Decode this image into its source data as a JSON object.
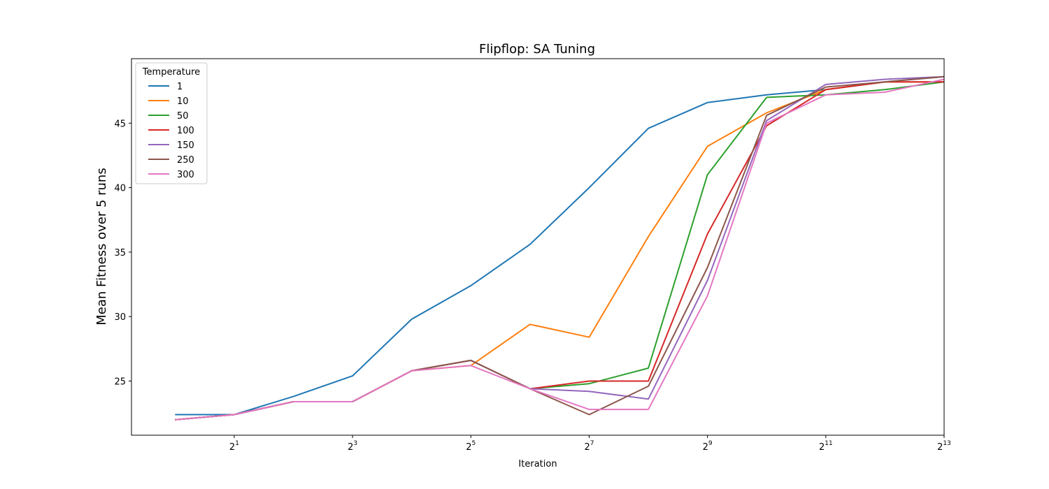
{
  "chart_data": {
    "type": "line",
    "title": "Flipflop: SA Tuning",
    "xlabel": "Iteration",
    "ylabel": "Mean Fitness over 5 runs",
    "xscale": "log2",
    "xlim": [
      0.6,
      8192
    ],
    "ylim": [
      20.8,
      50.0
    ],
    "grid": false,
    "legend": {
      "title": "Temperature",
      "position": "top-left"
    },
    "x": [
      1,
      2,
      4,
      8,
      16,
      32,
      64,
      128,
      256,
      512,
      1024,
      2048,
      4096,
      8192
    ],
    "x_ticks": [
      {
        "value": 2,
        "base": "2",
        "exp": "1"
      },
      {
        "value": 8,
        "base": "2",
        "exp": "3"
      },
      {
        "value": 32,
        "base": "2",
        "exp": "5"
      },
      {
        "value": 128,
        "base": "2",
        "exp": "7"
      },
      {
        "value": 512,
        "base": "2",
        "exp": "9"
      },
      {
        "value": 2048,
        "base": "2",
        "exp": "11"
      },
      {
        "value": 8192,
        "base": "2",
        "exp": "13"
      }
    ],
    "y_ticks": [
      25,
      30,
      35,
      40,
      45
    ],
    "series": [
      {
        "name": "1",
        "color": "#1f77b4",
        "values": [
          22.4,
          22.4,
          23.8,
          25.4,
          29.8,
          32.4,
          35.6,
          40.0,
          44.6,
          46.6,
          47.2,
          47.6,
          48.2,
          48.6
        ]
      },
      {
        "name": "10",
        "color": "#ff7f0e",
        "values": [
          22.0,
          22.4,
          23.4,
          23.4,
          25.8,
          26.2,
          29.4,
          28.4,
          36.2,
          43.2,
          45.8,
          47.6,
          48.2,
          48.2
        ]
      },
      {
        "name": "50",
        "color": "#2ca02c",
        "values": [
          22.0,
          22.4,
          23.4,
          23.4,
          25.8,
          26.6,
          24.4,
          24.8,
          26.0,
          41.0,
          47.0,
          47.2,
          47.6,
          48.2
        ]
      },
      {
        "name": "100",
        "color": "#d62728",
        "values": [
          22.0,
          22.4,
          23.4,
          23.4,
          25.8,
          26.6,
          24.4,
          25.0,
          25.0,
          36.4,
          44.8,
          47.6,
          48.2,
          48.2
        ]
      },
      {
        "name": "150",
        "color": "#9467bd",
        "values": [
          22.0,
          22.4,
          23.4,
          23.4,
          25.8,
          26.6,
          24.4,
          24.2,
          23.6,
          32.8,
          45.2,
          48.0,
          48.4,
          48.6
        ]
      },
      {
        "name": "250",
        "color": "#8c564b",
        "values": [
          22.0,
          22.4,
          23.4,
          23.4,
          25.8,
          26.6,
          24.4,
          22.4,
          24.6,
          33.8,
          45.6,
          47.8,
          48.2,
          48.6
        ]
      },
      {
        "name": "300",
        "color": "#e377c2",
        "values": [
          22.0,
          22.4,
          23.4,
          23.4,
          25.8,
          26.2,
          24.4,
          22.8,
          22.8,
          31.6,
          45.0,
          47.2,
          47.4,
          48.4
        ]
      }
    ]
  }
}
